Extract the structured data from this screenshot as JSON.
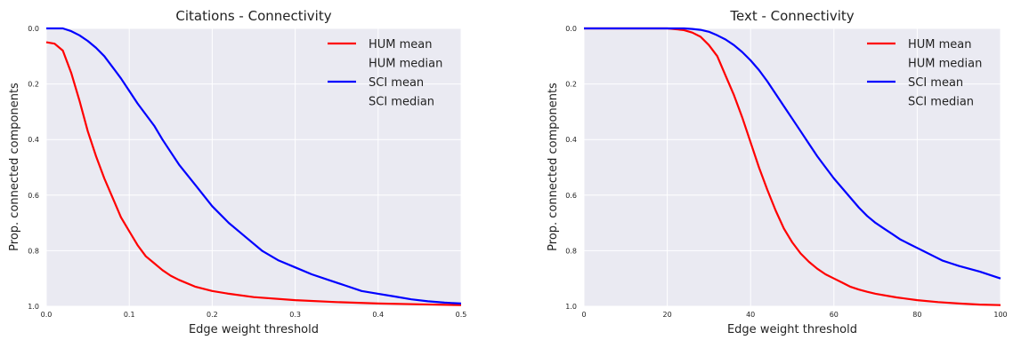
{
  "chart_data": [
    {
      "type": "line",
      "title": "Citations - Connectivity",
      "xlabel": "Edge weight threshold",
      "ylabel": "Prop. connected components",
      "xlim": [
        0.0,
        0.5
      ],
      "ylim": [
        0.0,
        1.0
      ],
      "y_inverted": true,
      "grid": true,
      "legend_position": "top-right",
      "xticks": [
        "0.0",
        "0.1",
        "0.2",
        "0.3",
        "0.4",
        "0.5"
      ],
      "yticks": [
        "0.0",
        "0.2",
        "0.4",
        "0.6",
        "0.8",
        "1.0"
      ],
      "legend": [
        "HUM mean",
        "HUM median",
        "SCI mean",
        "SCI median"
      ],
      "series": [
        {
          "name": "HUM mean",
          "color": "#ff0000",
          "x": [
            0.0,
            0.01,
            0.02,
            0.03,
            0.04,
            0.05,
            0.06,
            0.07,
            0.08,
            0.09,
            0.1,
            0.11,
            0.12,
            0.13,
            0.14,
            0.15,
            0.16,
            0.18,
            0.2,
            0.22,
            0.25,
            0.3,
            0.35,
            0.4,
            0.45,
            0.5
          ],
          "y": [
            0.05,
            0.055,
            0.08,
            0.16,
            0.26,
            0.37,
            0.46,
            0.54,
            0.61,
            0.68,
            0.73,
            0.78,
            0.82,
            0.845,
            0.87,
            0.89,
            0.905,
            0.93,
            0.945,
            0.955,
            0.967,
            0.978,
            0.985,
            0.99,
            0.993,
            0.996
          ]
        },
        {
          "name": "HUM median",
          "color": "#ff0000",
          "x": [],
          "y": []
        },
        {
          "name": "SCI mean",
          "color": "#0000ff",
          "x": [
            0.0,
            0.02,
            0.03,
            0.04,
            0.05,
            0.06,
            0.07,
            0.08,
            0.09,
            0.1,
            0.11,
            0.12,
            0.13,
            0.14,
            0.15,
            0.16,
            0.18,
            0.2,
            0.22,
            0.24,
            0.26,
            0.28,
            0.3,
            0.32,
            0.34,
            0.36,
            0.38,
            0.4,
            0.42,
            0.44,
            0.46,
            0.48,
            0.5
          ],
          "y": [
            0.0,
            0.0,
            0.01,
            0.025,
            0.045,
            0.07,
            0.1,
            0.14,
            0.18,
            0.225,
            0.27,
            0.31,
            0.35,
            0.4,
            0.445,
            0.49,
            0.565,
            0.64,
            0.7,
            0.75,
            0.8,
            0.835,
            0.86,
            0.885,
            0.905,
            0.925,
            0.945,
            0.955,
            0.965,
            0.975,
            0.982,
            0.987,
            0.99
          ]
        },
        {
          "name": "SCI median",
          "color": "#0000ff",
          "x": [],
          "y": []
        }
      ]
    },
    {
      "type": "line",
      "title": "Text - Connectivity",
      "xlabel": "Edge weight threshold",
      "ylabel": "Prop. connected components",
      "xlim": [
        0,
        100
      ],
      "ylim": [
        0.0,
        1.0
      ],
      "y_inverted": true,
      "grid": true,
      "legend_position": "top-right",
      "xticks": [
        "0",
        "20",
        "40",
        "60",
        "80",
        "100"
      ],
      "yticks": [
        "0.0",
        "0.2",
        "0.4",
        "0.6",
        "0.8",
        "1.0"
      ],
      "legend": [
        "HUM mean",
        "HUM median",
        "SCI mean",
        "SCI median"
      ],
      "series": [
        {
          "name": "HUM mean",
          "color": "#ff0000",
          "x": [
            0,
            20,
            22,
            24,
            26,
            28,
            30,
            32,
            34,
            36,
            38,
            40,
            42,
            44,
            46,
            48,
            50,
            52,
            54,
            56,
            58,
            60,
            62,
            64,
            66,
            68,
            70,
            75,
            80,
            85,
            90,
            95,
            100
          ],
          "y": [
            0.0,
            0.0,
            0.003,
            0.006,
            0.015,
            0.03,
            0.06,
            0.1,
            0.17,
            0.24,
            0.32,
            0.41,
            0.5,
            0.58,
            0.655,
            0.72,
            0.77,
            0.81,
            0.84,
            0.865,
            0.885,
            0.9,
            0.915,
            0.93,
            0.94,
            0.948,
            0.955,
            0.968,
            0.978,
            0.985,
            0.99,
            0.994,
            0.996
          ]
        },
        {
          "name": "HUM median",
          "color": "#ff0000",
          "x": [],
          "y": []
        },
        {
          "name": "SCI mean",
          "color": "#0000ff",
          "x": [
            0,
            24,
            26,
            28,
            30,
            32,
            34,
            36,
            38,
            40,
            42,
            44,
            46,
            48,
            50,
            52,
            54,
            56,
            58,
            60,
            62,
            64,
            66,
            68,
            70,
            72,
            74,
            76,
            78,
            80,
            82,
            84,
            86,
            88,
            90,
            95,
            100
          ],
          "y": [
            0.0,
            0.0,
            0.002,
            0.005,
            0.012,
            0.025,
            0.04,
            0.06,
            0.085,
            0.115,
            0.15,
            0.19,
            0.235,
            0.28,
            0.325,
            0.37,
            0.415,
            0.46,
            0.5,
            0.54,
            0.575,
            0.61,
            0.645,
            0.675,
            0.7,
            0.72,
            0.74,
            0.76,
            0.775,
            0.79,
            0.805,
            0.82,
            0.835,
            0.845,
            0.855,
            0.875,
            0.9
          ]
        },
        {
          "name": "SCI median",
          "color": "#0000ff",
          "x": [],
          "y": []
        }
      ]
    }
  ]
}
